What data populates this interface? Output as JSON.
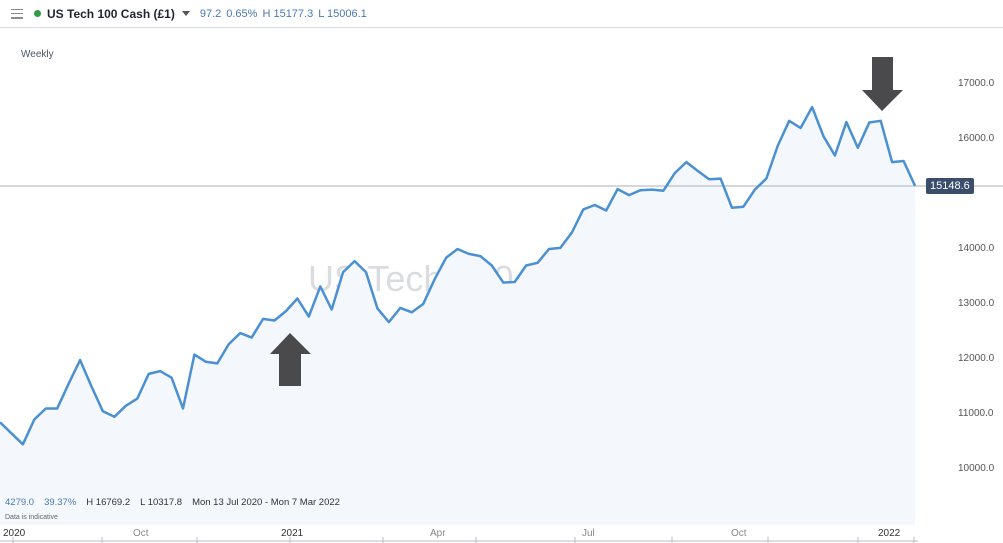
{
  "header": {
    "instrument": "US Tech 100 Cash (£1)",
    "change": "97.2",
    "change_pct": "0.65%",
    "high": "H 15177.3",
    "low": "L 15006.1",
    "status_color": "#2e9e3e"
  },
  "chart_meta": {
    "period": "Weekly",
    "watermark": "US Tech 100 Cash (£1)",
    "current_price": "15148.6"
  },
  "stats": {
    "change": "4279.0",
    "change_pct": "39.37%",
    "high": "H 16769.2",
    "low": "L 10317.8",
    "range": "Mon 13 Jul 2020 - Mon 7 Mar 2022",
    "note": "Data is indicative"
  },
  "y_axis": [
    "17000.0",
    "16000.0",
    "14000.0",
    "13000.0",
    "12000.0",
    "11000.0",
    "10000.0"
  ],
  "x_axis": [
    {
      "label": "2020",
      "year": true
    },
    {
      "label": "Oct",
      "year": false
    },
    {
      "label": "2021",
      "year": true
    },
    {
      "label": "Apr",
      "year": false
    },
    {
      "label": "Jul",
      "year": false
    },
    {
      "label": "Oct",
      "year": false
    },
    {
      "label": "2022",
      "year": true
    }
  ],
  "annotations": {
    "up_arrow": "up-arrow",
    "down_arrow": "down-arrow"
  },
  "chart_data": {
    "type": "area",
    "title": "US Tech 100 Cash (£1)",
    "subtitle": "Weekly",
    "xlabel": "",
    "ylabel": "",
    "x_range": [
      "Mon 13 Jul 2020",
      "Mon 7 Mar 2022"
    ],
    "ylim": [
      9000,
      17500
    ],
    "y_ticks": [
      10000,
      11000,
      12000,
      13000,
      14000,
      15000,
      16000,
      17000
    ],
    "grid": false,
    "line_color": "#4a90d2",
    "current_price": 15148.6,
    "series": [
      {
        "name": "US Tech 100 Cash (£1)",
        "values": [
          10850,
          10650,
          10450,
          10900,
          11100,
          11100,
          11550,
          11980,
          11500,
          11050,
          10950,
          11150,
          11280,
          11730,
          11780,
          11660,
          11100,
          12080,
          11950,
          11920,
          12270,
          12470,
          12390,
          12730,
          12700,
          12870,
          13100,
          12770,
          13320,
          12900,
          13580,
          13780,
          13580,
          12920,
          12670,
          12930,
          12850,
          13000,
          13450,
          13840,
          14000,
          13910,
          13870,
          13700,
          13390,
          13400,
          13700,
          13750,
          14000,
          14020,
          14300,
          14720,
          14800,
          14700,
          15090,
          14980,
          15070,
          15080,
          15060,
          15380,
          15580,
          15420,
          15270,
          15280,
          14750,
          14770,
          15080,
          15280,
          15880,
          16330,
          16200,
          16580,
          16050,
          15700,
          16310,
          15840,
          16300,
          16330,
          15580,
          15600,
          15148.6
        ]
      }
    ]
  }
}
